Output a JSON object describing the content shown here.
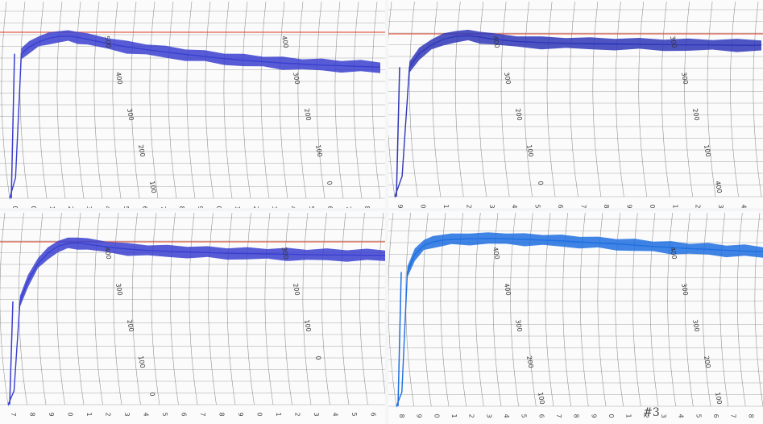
{
  "chart_data": [
    {
      "type": "line",
      "panel": "top-left",
      "title": "",
      "xlabel": "",
      "ylabel": "",
      "x_tick_labels": [
        "0",
        "0",
        "1",
        "2",
        "3",
        "4",
        "5",
        "6",
        "7",
        "8",
        "9",
        "0",
        "1",
        "2",
        "3",
        "4",
        "5",
        "6",
        "7",
        "8"
      ],
      "grid_curve_labels": [
        "500",
        "400",
        "400",
        "300",
        "300",
        "200",
        "200",
        "100",
        "100",
        "0",
        "0"
      ],
      "reference_line_color": "#e0604a",
      "trace_color": "#3a3fcf",
      "series": [
        {
          "x": [
            0,
            0.3,
            0.6,
            1,
            1.5,
            2,
            2.5,
            3,
            3.5,
            4,
            5,
            6,
            7,
            8,
            9,
            10,
            11,
            12,
            13,
            14,
            15,
            16,
            17,
            18,
            19
          ],
          "y": [
            0,
            60,
            420,
            440,
            455,
            465,
            470,
            471,
            468,
            462,
            450,
            440,
            432,
            425,
            418,
            412,
            406,
            401,
            397,
            393,
            390,
            387,
            385,
            383,
            381
          ]
        }
      ],
      "ylim": [
        0,
        520
      ]
    },
    {
      "type": "line",
      "panel": "top-right",
      "title": "",
      "xlabel": "",
      "ylabel": "",
      "x_tick_labels": [
        "9",
        "0",
        "1",
        "2",
        "3",
        "4",
        "5",
        "6",
        "7",
        "8",
        "9",
        "0",
        "1",
        "2",
        "3",
        "4"
      ],
      "grid_curve_labels": [
        "400",
        "300",
        "300",
        "300",
        "200",
        "200",
        "100",
        "100",
        "0",
        "400",
        "300",
        "200"
      ],
      "reference_line_color": "#e0604a",
      "trace_color": "#2f37b8",
      "series": [
        {
          "x": [
            0,
            0.3,
            0.6,
            1,
            1.5,
            2,
            2.5,
            3,
            3.5,
            4,
            5,
            6,
            7,
            8,
            9,
            10,
            11,
            12,
            13,
            14,
            15
          ],
          "y": [
            0,
            60,
            380,
            420,
            445,
            462,
            470,
            472,
            468,
            462,
            455,
            452,
            450,
            449,
            448,
            447,
            446,
            445,
            445,
            444,
            444
          ]
        }
      ],
      "ylim": [
        0,
        520
      ]
    },
    {
      "type": "line",
      "panel": "bottom-left",
      "title": "",
      "xlabel": "",
      "ylabel": "",
      "x_tick_labels": [
        "7",
        "8",
        "9",
        "0",
        "1",
        "2",
        "3",
        "4",
        "5",
        "6",
        "7",
        "8",
        "9",
        "0",
        "1",
        "2",
        "3",
        "4",
        "5",
        "6"
      ],
      "grid_curve_labels": [
        "400",
        "300",
        "300",
        "200",
        "200",
        "100",
        "100",
        "0",
        "0"
      ],
      "reference_line_color": "#e0604a",
      "trace_color": "#3a3fcf",
      "series": [
        {
          "x": [
            0,
            0.3,
            0.6,
            1,
            1.5,
            2,
            2.5,
            3,
            3.5,
            4,
            5,
            6,
            7,
            8,
            9,
            10,
            11,
            12,
            13,
            14,
            15,
            16,
            17,
            18,
            19
          ],
          "y": [
            0,
            40,
            300,
            360,
            410,
            440,
            460,
            468,
            470,
            466,
            458,
            452,
            448,
            446,
            444,
            442,
            440,
            439,
            438,
            437,
            436,
            435,
            435,
            434,
            434
          ]
        }
      ],
      "ylim": [
        0,
        520
      ]
    },
    {
      "type": "line",
      "panel": "bottom-right",
      "title": "",
      "xlabel": "",
      "ylabel": "",
      "x_tick_labels": [
        "8",
        "9",
        "0",
        "1",
        "2",
        "3",
        "4",
        "5",
        "6",
        "7",
        "8",
        "9",
        "0",
        "1",
        "2",
        "3",
        "4",
        "5",
        "6",
        "7",
        "8"
      ],
      "grid_curve_labels": [
        "400",
        "400",
        "400",
        "300",
        "300",
        "300",
        "200",
        "200",
        "100",
        "100",
        "100"
      ],
      "annotation": "#3",
      "reference_line_color": "#e0604a",
      "trace_color": "#1f6fe0",
      "series": [
        {
          "x": [
            0,
            0.3,
            0.6,
            1,
            1.5,
            2,
            2.5,
            3,
            4,
            5,
            6,
            7,
            8,
            9,
            10,
            11,
            12,
            13,
            14,
            15,
            16,
            17,
            18,
            19,
            20
          ],
          "y": [
            0,
            40,
            380,
            430,
            455,
            465,
            470,
            472,
            474,
            475,
            474,
            472,
            470,
            468,
            465,
            462,
            459,
            456,
            452,
            449,
            446,
            444,
            441,
            439,
            437
          ]
        }
      ],
      "ylim": [
        0,
        520
      ]
    }
  ]
}
